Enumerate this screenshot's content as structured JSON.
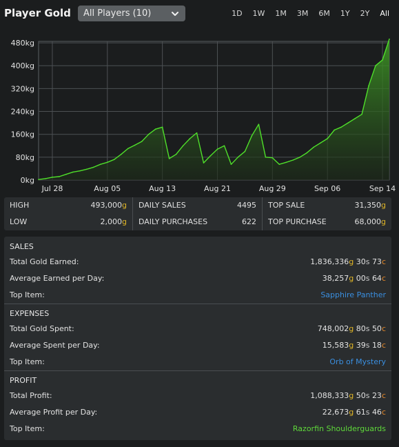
{
  "header": {
    "title": "Player Gold",
    "dropdown_value": "All Players (10)",
    "ranges": [
      "1D",
      "1W",
      "1M",
      "3M",
      "6M",
      "1Y",
      "2Y",
      "All"
    ],
    "active_range": "All"
  },
  "chart_data": {
    "type": "area",
    "y_tick_labels": [
      "0kg",
      "80kg",
      "160kg",
      "240kg",
      "320kg",
      "400kg",
      "480kg"
    ],
    "y_ticks": [
      0,
      80,
      160,
      240,
      320,
      400,
      480
    ],
    "ylim": [
      0,
      500
    ],
    "x_tick_labels": [
      "Jul 28",
      "Aug 05",
      "Aug 13",
      "Aug 21",
      "Aug 29",
      "Sep 06",
      "Sep 14"
    ],
    "x_ticks": [
      "2023-07-28",
      "2023-08-05",
      "2023-08-13",
      "2023-08-21",
      "2023-08-29",
      "2023-09-06",
      "2023-09-14"
    ],
    "grid": true,
    "line_color": "#4fe02a",
    "series": [
      {
        "dates": [
          "2023-07-26",
          "2023-07-27",
          "2023-07-28",
          "2023-07-29",
          "2023-07-30",
          "2023-07-31",
          "2023-08-01",
          "2023-08-02",
          "2023-08-03",
          "2023-08-04",
          "2023-08-05",
          "2023-08-06",
          "2023-08-07",
          "2023-08-08",
          "2023-08-09",
          "2023-08-10",
          "2023-08-11",
          "2023-08-12",
          "2023-08-13",
          "2023-08-14",
          "2023-08-15",
          "2023-08-16",
          "2023-08-17",
          "2023-08-18",
          "2023-08-19",
          "2023-08-20",
          "2023-08-21",
          "2023-08-22",
          "2023-08-23",
          "2023-08-24",
          "2023-08-25",
          "2023-08-26",
          "2023-08-27",
          "2023-08-28",
          "2023-08-29",
          "2023-08-30",
          "2023-08-31",
          "2023-09-01",
          "2023-09-02",
          "2023-09-03",
          "2023-09-04",
          "2023-09-05",
          "2023-09-06",
          "2023-09-07",
          "2023-09-08",
          "2023-09-09",
          "2023-09-10",
          "2023-09-11",
          "2023-09-12",
          "2023-09-13",
          "2023-09-14",
          "2023-09-15"
        ],
        "values": [
          2,
          5,
          10,
          12,
          20,
          28,
          32,
          38,
          45,
          55,
          62,
          72,
          90,
          110,
          122,
          135,
          160,
          178,
          185,
          75,
          90,
          120,
          145,
          165,
          60,
          85,
          108,
          120,
          55,
          80,
          100,
          155,
          195,
          80,
          78,
          55,
          62,
          70,
          80,
          95,
          115,
          130,
          145,
          175,
          185,
          200,
          215,
          230,
          330,
          400,
          420,
          493
        ]
      }
    ]
  },
  "stats": {
    "high_label": "HIGH",
    "high_value": "493,000",
    "high_unit": "g",
    "low_label": "LOW",
    "low_value": "2,000",
    "low_unit": "g",
    "daily_sales_label": "DAILY SALES",
    "daily_sales_value": "4495",
    "daily_purchases_label": "DAILY PURCHASES",
    "daily_purchases_value": "622",
    "top_sale_label": "TOP SALE",
    "top_sale_value": "31,350",
    "top_sale_unit": "g",
    "top_purchase_label": "TOP PURCHASE",
    "top_purchase_value": "68,000",
    "top_purchase_unit": "g"
  },
  "sales": {
    "heading": "SALES",
    "total_label": "Total Gold Earned:",
    "total_g": "1,836,336",
    "total_s": "30",
    "total_c": "73",
    "avg_label": "Average Earned per Day:",
    "avg_g": "38,257",
    "avg_s": "00",
    "avg_c": "64",
    "top_label": "Top Item:",
    "top_item": "Sapphire Panther"
  },
  "expenses": {
    "heading": "EXPENSES",
    "total_label": "Total Gold Spent:",
    "total_g": "748,002",
    "total_s": "80",
    "total_c": "50",
    "avg_label": "Average Spent per Day:",
    "avg_g": "15,583",
    "avg_s": "39",
    "avg_c": "18",
    "top_label": "Top Item:",
    "top_item": "Orb of Mystery"
  },
  "profit": {
    "heading": "PROFIT",
    "total_label": "Total Profit:",
    "total_g": "1,088,333",
    "total_s": "50",
    "total_c": "23",
    "avg_label": "Average Profit per Day:",
    "avg_g": "22,673",
    "avg_s": "61",
    "avg_c": "46",
    "top_label": "Top Item:",
    "top_item": "Razorfin Shoulderguards"
  },
  "units": {
    "g": "g",
    "s": "s",
    "c": "c"
  }
}
